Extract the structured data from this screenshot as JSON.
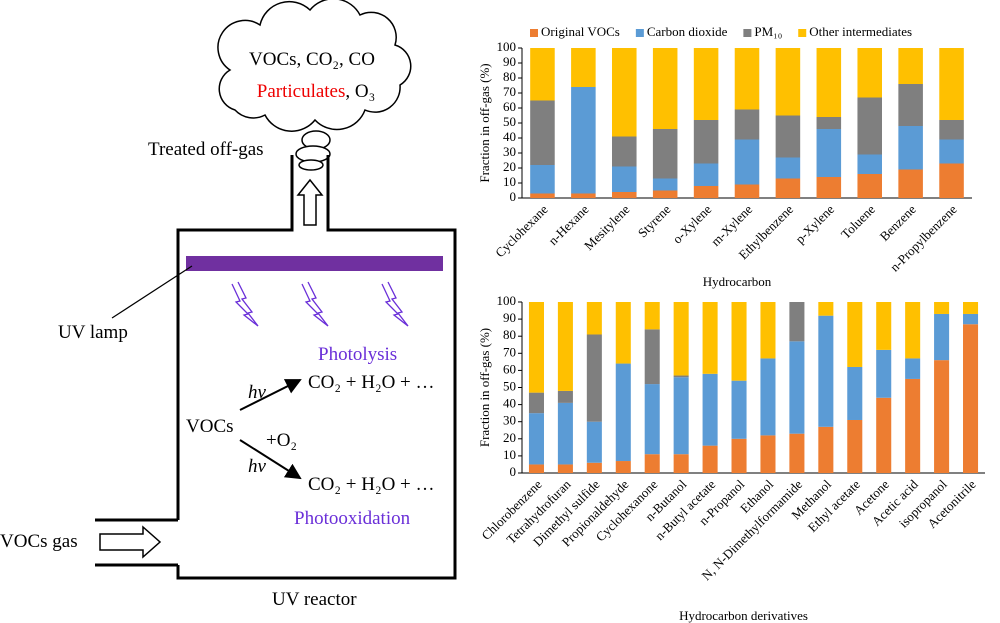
{
  "diagram": {
    "cloud_line1": "VOCs, CO₂, CO",
    "cloud_particulates": "Particulates",
    "cloud_o3": ", O₃",
    "treated": "Treated off-gas",
    "uv_lamp": "UV lamp",
    "photolysis": "Photolysis",
    "hv1": "hv",
    "product1": "CO₂ + H₂O + …",
    "vocs": "VOCs",
    "plus_o2": "+O₂",
    "hv2": "hv",
    "product2": "CO₂ + H₂O + …",
    "photooxidation": "Photooxidation",
    "vocs_gas": "VOCs gas",
    "reactor": "UV reactor"
  },
  "chart_data": [
    {
      "type": "bar",
      "stacked": true,
      "xlabel": "Hydrocarbon",
      "ylabel": "Fraction in off-gas (%)",
      "categories": [
        "Cyclohexane",
        "n-Hexane",
        "Mesitylene",
        "Styrene",
        "o-Xylene",
        "m-Xylene",
        "Ethylbenzene",
        "p-Xylene",
        "Toluene",
        "Benzene",
        "n-Propylbenzene"
      ],
      "series": [
        {
          "name": "Original VOCs",
          "color": "#ed7d31",
          "values": [
            3,
            3,
            4,
            5,
            8,
            9,
            13,
            14,
            16,
            19,
            23
          ]
        },
        {
          "name": "Carbon dioxide",
          "color": "#5b9bd5",
          "values": [
            19,
            71,
            17,
            8,
            15,
            30,
            14,
            32,
            13,
            29,
            16
          ]
        },
        {
          "name": "PM₁₀",
          "color": "#7f7f7f",
          "values": [
            43,
            0,
            20,
            33,
            29,
            20,
            28,
            8,
            38,
            28,
            13
          ]
        },
        {
          "name": "Other intermediates",
          "color": "#ffc000",
          "values": [
            35,
            26,
            59,
            54,
            48,
            41,
            45,
            46,
            33,
            24,
            48
          ]
        }
      ],
      "ylim": [
        0,
        100
      ],
      "yticks": [
        0,
        10,
        20,
        30,
        40,
        50,
        60,
        70,
        80,
        90,
        100
      ],
      "legend": "top"
    },
    {
      "type": "bar",
      "stacked": true,
      "xlabel": "Hydrocarbon derivatives",
      "ylabel": "Fraction in off-gas (%)",
      "categories": [
        "Chlorobenzene",
        "Tetrahydrofuran",
        "Dimethyl sulfide",
        "Propionaldehyde",
        "Cyclohexanone",
        "n-Butanol",
        "n-Butyl acetate",
        "n-Propanol",
        "Ethanol",
        "N, N-Dimethylformamide",
        "Methanol",
        "Ethyl acetate",
        "Acetone",
        "Acetic acid",
        "isopropanol",
        "Acetonitrile"
      ],
      "series": [
        {
          "color": "#ed7d31",
          "values": [
            5,
            5,
            6,
            7,
            11,
            11,
            16,
            20,
            22,
            23,
            27,
            31,
            44,
            55,
            66,
            87
          ]
        },
        {
          "color": "#5b9bd5",
          "values": [
            30,
            36,
            24,
            57,
            41,
            45,
            42,
            34,
            45,
            54,
            65,
            31,
            28,
            12,
            27,
            6
          ]
        },
        {
          "color": "#7f7f7f",
          "values": [
            12,
            7,
            51,
            0,
            32,
            1,
            0,
            0,
            0,
            23,
            0,
            0,
            0,
            0,
            0,
            0
          ]
        },
        {
          "color": "#ffc000",
          "values": [
            53,
            52,
            19,
            36,
            16,
            43,
            42,
            46,
            33,
            0,
            8,
            38,
            28,
            33,
            7,
            7
          ]
        }
      ],
      "ylim": [
        0,
        100
      ],
      "yticks": [
        0,
        10,
        20,
        30,
        40,
        50,
        60,
        70,
        80,
        90,
        100
      ]
    }
  ]
}
